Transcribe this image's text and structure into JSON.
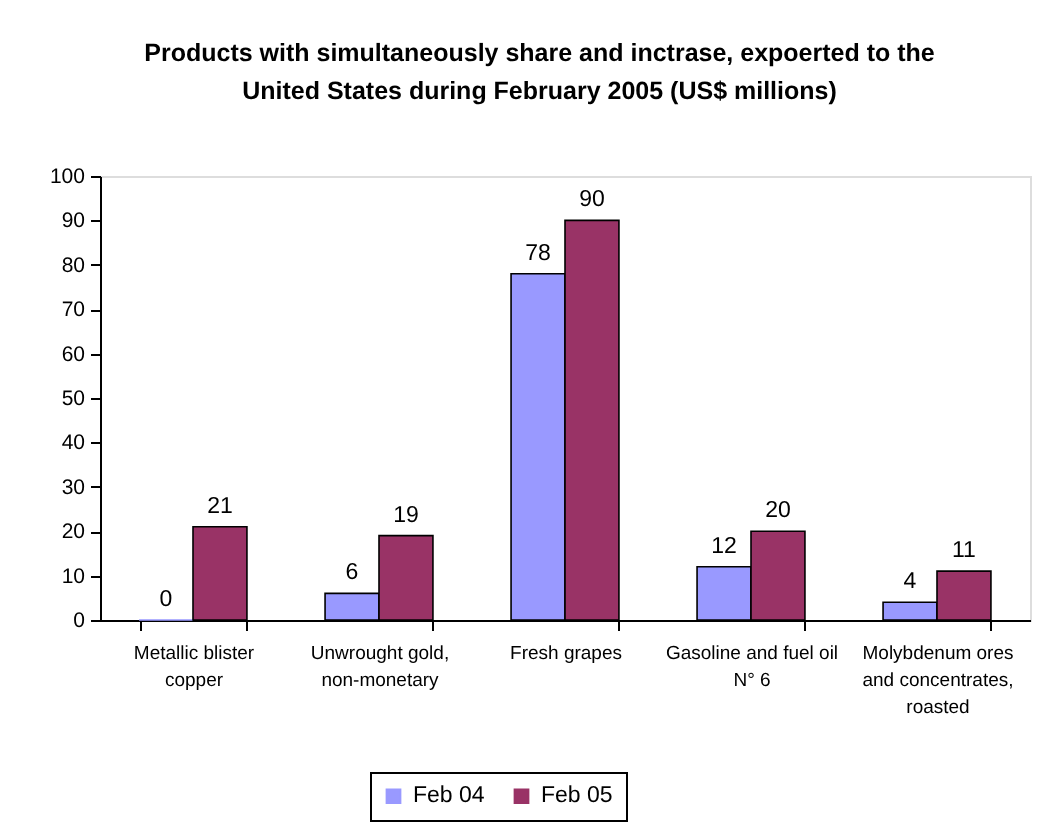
{
  "chart_data": {
    "type": "bar",
    "title": "Products with simultaneously share and inctrase, expoerted to the United States during February 2005 (US$ millions)",
    "categories": [
      "Metallic blister copper",
      "Unwrought gold, non-monetary",
      "Fresh grapes",
      "Gasoline and fuel oil N° 6",
      "Molybdenum ores and concentrates, roasted"
    ],
    "series": [
      {
        "name": "Feb 04",
        "color": "#9999ff",
        "values": [
          0,
          6,
          78,
          12,
          4
        ]
      },
      {
        "name": "Feb 05",
        "color": "#993366",
        "values": [
          21,
          19,
          90,
          20,
          11
        ]
      }
    ],
    "ylim": [
      0,
      100
    ],
    "yticks": [
      0,
      10,
      20,
      30,
      40,
      50,
      60,
      70,
      80,
      90,
      100
    ],
    "data_labels": true,
    "legend": "bottom",
    "grid": false
  }
}
